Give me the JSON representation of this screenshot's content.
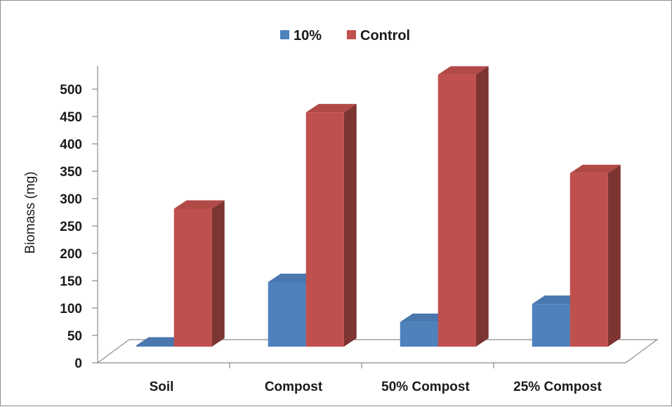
{
  "chart_data": {
    "type": "bar",
    "style": "3d-clustered-column",
    "categories": [
      "Soil",
      "Compost",
      "50% Compost",
      "25% Compost"
    ],
    "series": [
      {
        "name": "10%",
        "values": [
          2,
          118,
          45,
          78
        ],
        "color": "#4f81bd"
      },
      {
        "name": "Control",
        "values": [
          252,
          428,
          497,
          317
        ],
        "color": "#c0504d"
      }
    ],
    "ylabel": "Biomass (mg)",
    "xlabel": "",
    "ylim": [
      0,
      500
    ],
    "yticks": [
      0,
      50,
      100,
      150,
      200,
      250,
      300,
      350,
      400,
      450,
      500
    ],
    "grid": false,
    "legend_position": "top"
  }
}
